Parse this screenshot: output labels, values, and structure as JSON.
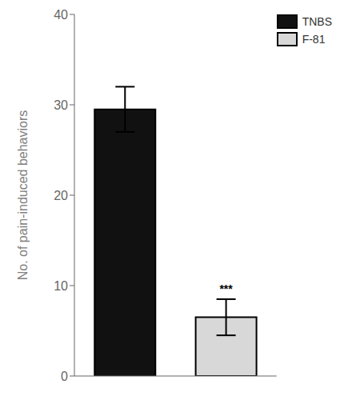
{
  "chart_data": {
    "type": "bar",
    "categories": [
      "TNBS",
      "F-81"
    ],
    "values": [
      29.5,
      6.5
    ],
    "errors": [
      2.5,
      2.0
    ],
    "colors": [
      "#111111",
      "#d8d8d8"
    ],
    "ylabel": "No. of pain-induced behaviors",
    "ylim": [
      0,
      40
    ],
    "yticks": [
      0,
      10,
      20,
      30,
      40
    ],
    "legend": "upper right",
    "tick_labels": "y",
    "grid": false,
    "annotations": [
      {
        "text": "***",
        "category": "F-81"
      }
    ]
  }
}
